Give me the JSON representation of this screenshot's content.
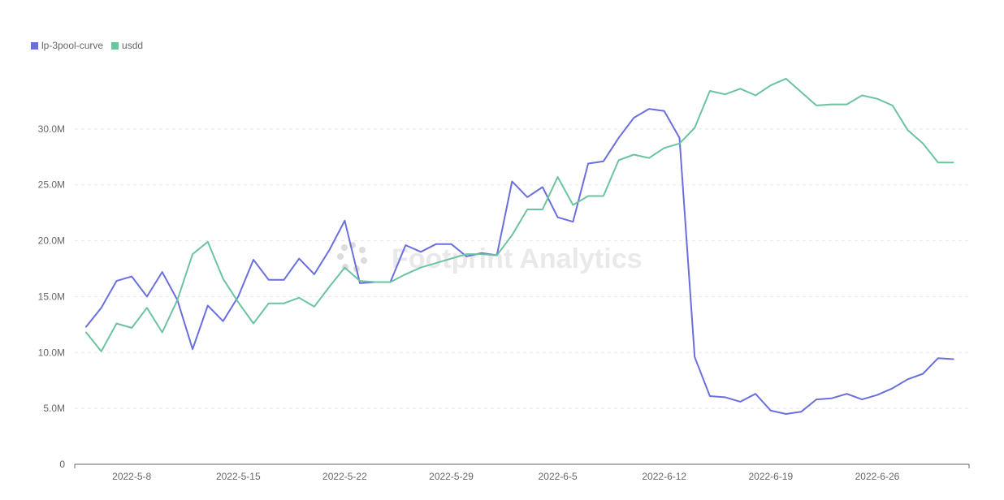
{
  "watermark": "Footprint Analytics",
  "chart_data": {
    "type": "line",
    "grid": true,
    "legend_position": "top-left",
    "ylim": [
      0,
      35000000
    ],
    "yticks": [
      0,
      5000000,
      10000000,
      15000000,
      20000000,
      25000000,
      30000000
    ],
    "ytick_labels": [
      "0",
      "5.0M",
      "10.0M",
      "15.0M",
      "20.0M",
      "25.0M",
      "30.0M"
    ],
    "x": [
      "2022-5-5",
      "2022-5-6",
      "2022-5-7",
      "2022-5-8",
      "2022-5-9",
      "2022-5-10",
      "2022-5-11",
      "2022-5-12",
      "2022-5-13",
      "2022-5-14",
      "2022-5-15",
      "2022-5-16",
      "2022-5-17",
      "2022-5-18",
      "2022-5-19",
      "2022-5-20",
      "2022-5-21",
      "2022-5-22",
      "2022-5-23",
      "2022-5-24",
      "2022-5-25",
      "2022-5-26",
      "2022-5-27",
      "2022-5-28",
      "2022-5-29",
      "2022-5-30",
      "2022-5-31",
      "2022-6-1",
      "2022-6-2",
      "2022-6-3",
      "2022-6-4",
      "2022-6-5",
      "2022-6-6",
      "2022-6-7",
      "2022-6-8",
      "2022-6-9",
      "2022-6-10",
      "2022-6-11",
      "2022-6-12",
      "2022-6-13",
      "2022-6-14",
      "2022-6-15",
      "2022-6-16",
      "2022-6-17",
      "2022-6-18",
      "2022-6-19",
      "2022-6-20",
      "2022-6-21",
      "2022-6-22",
      "2022-6-23",
      "2022-6-24",
      "2022-6-25",
      "2022-6-26",
      "2022-6-27",
      "2022-6-28",
      "2022-6-29",
      "2022-6-30",
      "2022-7-1"
    ],
    "xtick_labels": [
      "2022-5-8",
      "2022-5-15",
      "2022-5-22",
      "2022-5-29",
      "2022-6-5",
      "2022-6-12",
      "2022-6-19",
      "2022-6-26"
    ],
    "series": [
      {
        "name": "lp-3pool-curve",
        "color": "#6a6fdc",
        "values": [
          12.3,
          14.0,
          16.4,
          16.8,
          15.0,
          17.2,
          14.7,
          10.3,
          14.2,
          12.8,
          15.0,
          18.3,
          16.5,
          16.5,
          18.4,
          17.0,
          19.2,
          21.8,
          16.2,
          16.3,
          16.3,
          19.6,
          19.0,
          19.7,
          19.7,
          18.6,
          18.9,
          18.7,
          25.3,
          23.9,
          24.8,
          22.1,
          21.7,
          26.9,
          27.1,
          29.2,
          31.0,
          31.8,
          31.6,
          29.2,
          9.6,
          6.1,
          6.0,
          5.6,
          6.3,
          4.8,
          4.5,
          4.7,
          5.8,
          5.9,
          6.3,
          5.8,
          6.2,
          6.8,
          7.6,
          8.1,
          9.5,
          9.4
        ]
      },
      {
        "name": "usdd",
        "color": "#6bc49e",
        "values": [
          11.8,
          10.1,
          12.6,
          12.2,
          14.0,
          11.8,
          14.7,
          18.8,
          19.9,
          16.6,
          14.5,
          12.6,
          14.4,
          14.4,
          14.9,
          14.1,
          15.9,
          17.6,
          16.4,
          16.3,
          16.3,
          17.0,
          17.6,
          18.0,
          18.4,
          18.8,
          18.8,
          18.7,
          20.5,
          22.8,
          22.8,
          25.7,
          23.2,
          24.0,
          24.0,
          27.2,
          27.7,
          27.4,
          28.3,
          28.7,
          30.1,
          33.4,
          33.1,
          33.6,
          33.0,
          33.9,
          34.5,
          33.3,
          32.1,
          32.2,
          32.2,
          33.0,
          32.7,
          32.1,
          29.9,
          28.7,
          27.0,
          27.0
        ],
        "value_unit_note": null
      }
    ]
  }
}
